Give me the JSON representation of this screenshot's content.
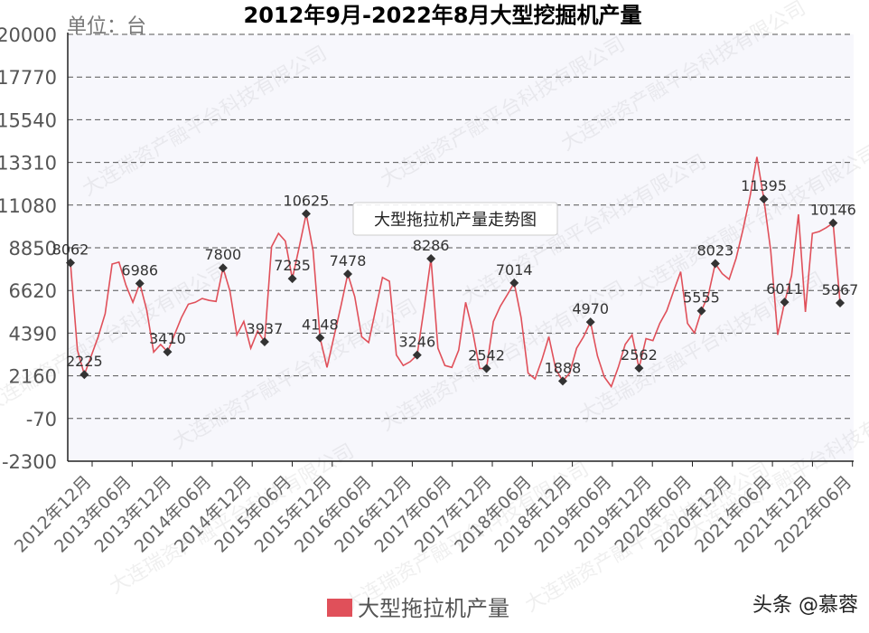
{
  "chart_data": {
    "type": "line",
    "title": "2012年9月-2022年8月大型挖掘机产量",
    "unit_label": "单位：台",
    "tooltip_label": "大型拖拉机产量走势图",
    "ylim": [
      -2300,
      20000
    ],
    "yticks": [
      "20000",
      "17770",
      "15540",
      "13310",
      "11080",
      "8850",
      "6620",
      "4390",
      "2160",
      "-70",
      "-2300"
    ],
    "x_tick_labels": [
      "2012年12月",
      "2013年06月",
      "2013年12月",
      "2014年06月",
      "2014年12月",
      "2015年06月",
      "2015年12月",
      "2016年06月",
      "2016年12月",
      "2017年06月",
      "2017年12月",
      "2018年06月",
      "2018年12月",
      "2019年06月",
      "2019年12月",
      "2020年06月",
      "2020年12月",
      "2021年06月",
      "2021年12月",
      "2022年06月"
    ],
    "grid": true,
    "legend_position": "bottom",
    "series": [
      {
        "name": "大型拖拉机产量",
        "color": "#e0505a",
        "values": [
          8062,
          3500,
          2225,
          3200,
          4200,
          5400,
          8000,
          8100,
          6900,
          6000,
          6986,
          5600,
          3400,
          3800,
          3410,
          4300,
          5200,
          5900,
          6000,
          6200,
          6100,
          6050,
          7800,
          6600,
          4300,
          5000,
          3600,
          4500,
          3937,
          8900,
          9600,
          9200,
          7235,
          8900,
          10625,
          8700,
          4148,
          2600,
          4200,
          5800,
          7478,
          6300,
          4200,
          3900,
          5600,
          7300,
          7100,
          3246,
          2700,
          2900,
          3246,
          5700,
          8286,
          3600,
          2700,
          2600,
          3500,
          6000,
          4500,
          2542,
          2542,
          5000,
          5800,
          6400,
          7014,
          5200,
          2300,
          2000,
          3000,
          4200,
          2500,
          1888,
          2300,
          3600,
          4200,
          4970,
          3200,
          2100,
          1600,
          2600,
          3800,
          4300,
          2562,
          4100,
          4000,
          4900,
          5555,
          6600,
          7600,
          4900,
          4400,
          5555,
          6400,
          8023,
          7500,
          7200,
          8300,
          9800,
          11500,
          13600,
          11395,
          8700,
          4300,
          6011,
          7400,
          10600,
          5500,
          9600,
          9700,
          9900,
          10146,
          5967
        ]
      }
    ],
    "data_labels": [
      {
        "index": 0,
        "text": "8062"
      },
      {
        "index": 2,
        "text": "2225"
      },
      {
        "index": 10,
        "text": "6986"
      },
      {
        "index": 14,
        "text": "3410"
      },
      {
        "index": 22,
        "text": "7800"
      },
      {
        "index": 28,
        "text": "3937"
      },
      {
        "index": 32,
        "text": "7235"
      },
      {
        "index": 34,
        "text": "10625"
      },
      {
        "index": 36,
        "text": "4148"
      },
      {
        "index": 40,
        "text": "7478"
      },
      {
        "index": 50,
        "text": "3246"
      },
      {
        "index": 52,
        "text": "8286"
      },
      {
        "index": 60,
        "text": "2542"
      },
      {
        "index": 64,
        "text": "7014"
      },
      {
        "index": 71,
        "text": "1888"
      },
      {
        "index": 75,
        "text": "4970"
      },
      {
        "index": 82,
        "text": "2562"
      },
      {
        "index": 91,
        "text": "5555"
      },
      {
        "index": 93,
        "text": "8023"
      },
      {
        "index": 100,
        "text": "11395"
      },
      {
        "index": 103,
        "text": "6011"
      },
      {
        "index": 110,
        "text": "10146"
      },
      {
        "index": 111,
        "text": "5967"
      }
    ]
  },
  "watermark": "大连瑞资产融平台科技有限公司",
  "credit": "头条 @慕蓉"
}
